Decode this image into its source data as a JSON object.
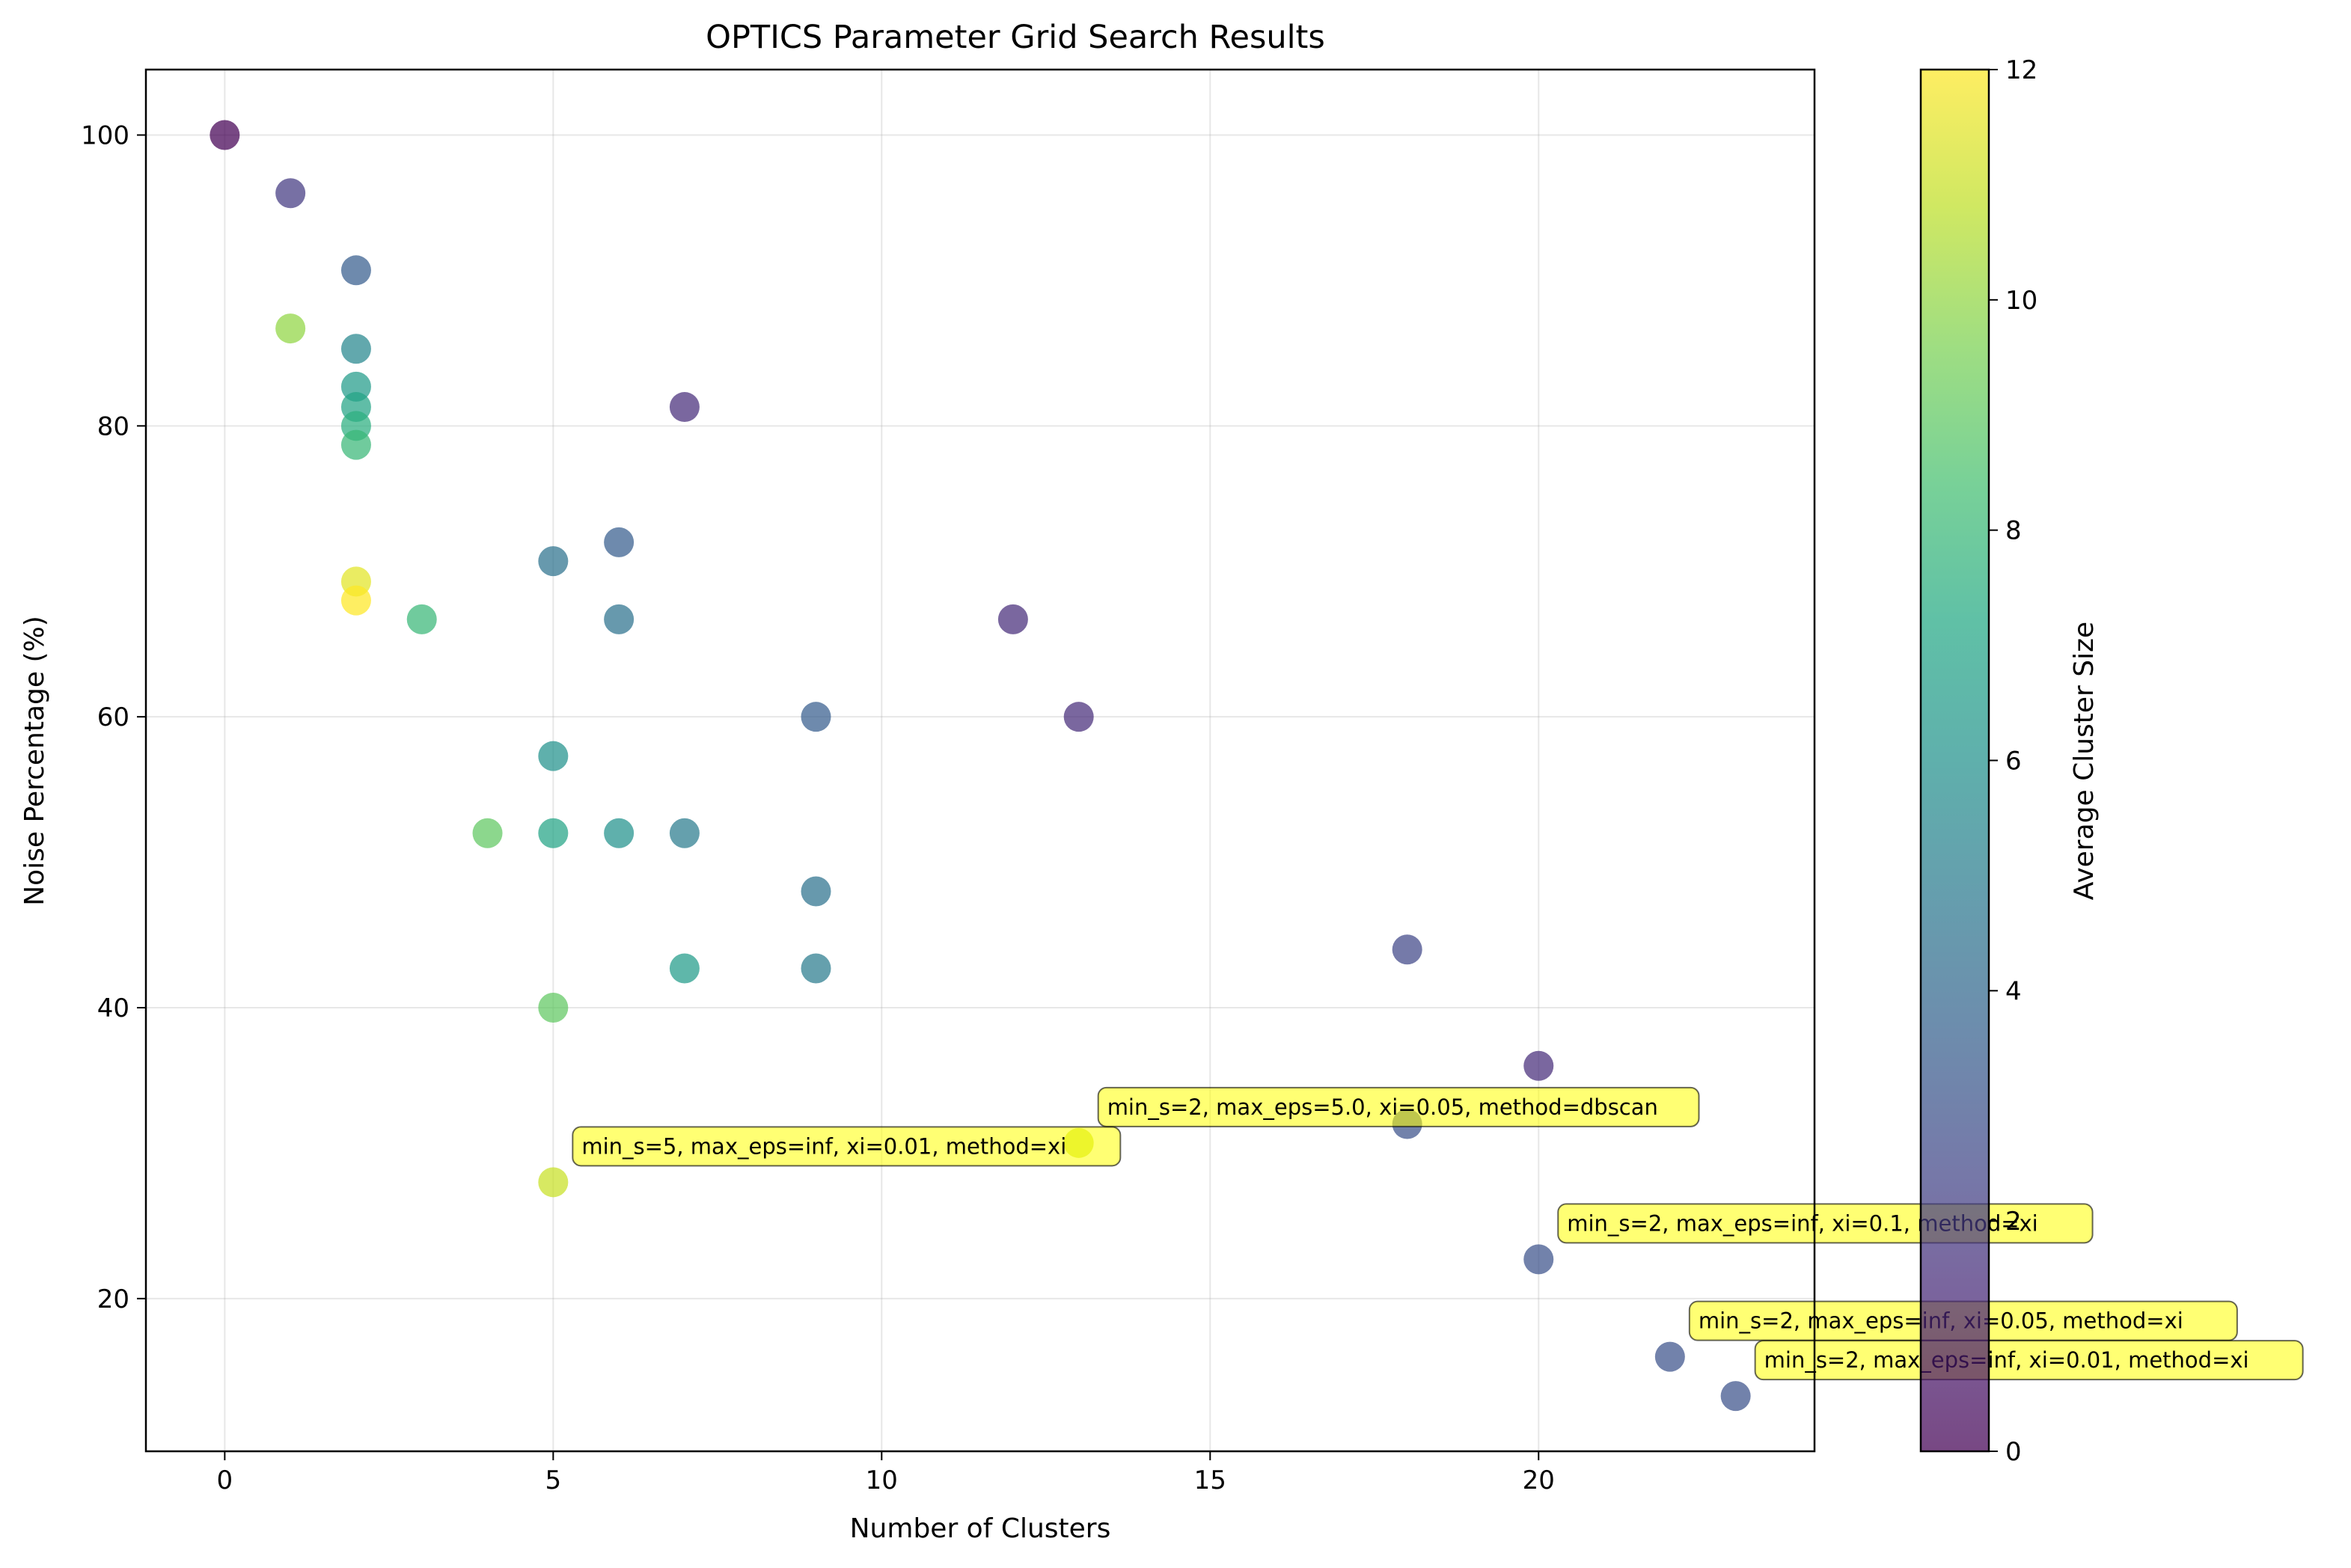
{
  "chart_data": {
    "type": "scatter",
    "title": "OPTICS Parameter Grid Search Results",
    "xlabel": "Number of Clusters",
    "ylabel": "Noise Percentage (%)",
    "xlim": [
      -1.2,
      24.2
    ],
    "ylim": [
      9.5,
      104.5
    ],
    "xticks": [
      0,
      5,
      10,
      15,
      20
    ],
    "yticks": [
      20,
      40,
      60,
      80,
      100
    ],
    "grid": true,
    "colormap": "viridis",
    "colorbar": {
      "label": "Average Cluster Size",
      "range": [
        0,
        12
      ],
      "ticks": [
        0,
        2,
        4,
        6,
        8,
        10,
        12
      ]
    },
    "points": [
      {
        "x": 0,
        "y": 100.0,
        "c": 0.0
      },
      {
        "x": 1,
        "y": 96.0,
        "c": 2.0
      },
      {
        "x": 1,
        "y": 86.7,
        "c": 10.0
      },
      {
        "x": 2,
        "y": 90.7,
        "c": 3.5
      },
      {
        "x": 2,
        "y": 85.3,
        "c": 5.5
      },
      {
        "x": 2,
        "y": 82.7,
        "c": 6.5
      },
      {
        "x": 2,
        "y": 81.3,
        "c": 7.0
      },
      {
        "x": 2,
        "y": 80.0,
        "c": 7.5
      },
      {
        "x": 2,
        "y": 78.7,
        "c": 8.0
      },
      {
        "x": 2,
        "y": 69.3,
        "c": 11.5
      },
      {
        "x": 2,
        "y": 68.0,
        "c": 12.0
      },
      {
        "x": 3,
        "y": 66.7,
        "c": 8.0
      },
      {
        "x": 4,
        "y": 52.0,
        "c": 9.0
      },
      {
        "x": 5,
        "y": 70.7,
        "c": 4.5
      },
      {
        "x": 5,
        "y": 57.3,
        "c": 6.0
      },
      {
        "x": 5,
        "y": 52.0,
        "c": 7.0
      },
      {
        "x": 5,
        "y": 40.0,
        "c": 9.0
      },
      {
        "x": 5,
        "y": 28.0,
        "c": 11.0
      },
      {
        "x": 6,
        "y": 72.0,
        "c": 3.5
      },
      {
        "x": 6,
        "y": 66.7,
        "c": 4.5
      },
      {
        "x": 6,
        "y": 52.0,
        "c": 6.0
      },
      {
        "x": 7,
        "y": 81.3,
        "c": 1.5
      },
      {
        "x": 7,
        "y": 52.0,
        "c": 5.0
      },
      {
        "x": 7,
        "y": 42.7,
        "c": 6.5
      },
      {
        "x": 9,
        "y": 60.0,
        "c": 3.5
      },
      {
        "x": 9,
        "y": 48.0,
        "c": 4.5
      },
      {
        "x": 9,
        "y": 42.7,
        "c": 5.0
      },
      {
        "x": 12,
        "y": 66.7,
        "c": 1.5
      },
      {
        "x": 13,
        "y": 60.0,
        "c": 1.5
      },
      {
        "x": 13,
        "y": 30.7,
        "c": 11.0
      },
      {
        "x": 18,
        "y": 44.0,
        "c": 2.5
      },
      {
        "x": 18,
        "y": 32.0,
        "c": 3.0
      },
      {
        "x": 20,
        "y": 36.0,
        "c": 1.5
      },
      {
        "x": 20,
        "y": 22.7,
        "c": 3.0
      },
      {
        "x": 22,
        "y": 16.0,
        "c": 3.0
      },
      {
        "x": 23,
        "y": 13.3,
        "c": 3.0
      }
    ],
    "annotations": [
      {
        "text": "min_s=5, max_eps=inf, xi=0.01, method=xi",
        "x": 5,
        "y": 28.0
      },
      {
        "text": "min_s=2, max_eps=5.0, xi=0.05, method=dbscan",
        "x": 13,
        "y": 30.7
      },
      {
        "text": "min_s=2, max_eps=inf, xi=0.1, method=xi",
        "x": 20,
        "y": 22.7
      },
      {
        "text": "min_s=2, max_eps=inf, xi=0.05, method=xi",
        "x": 22,
        "y": 16.0
      },
      {
        "text": "min_s=2, max_eps=inf, xi=0.01, method=xi",
        "x": 23,
        "y": 13.3
      }
    ]
  }
}
